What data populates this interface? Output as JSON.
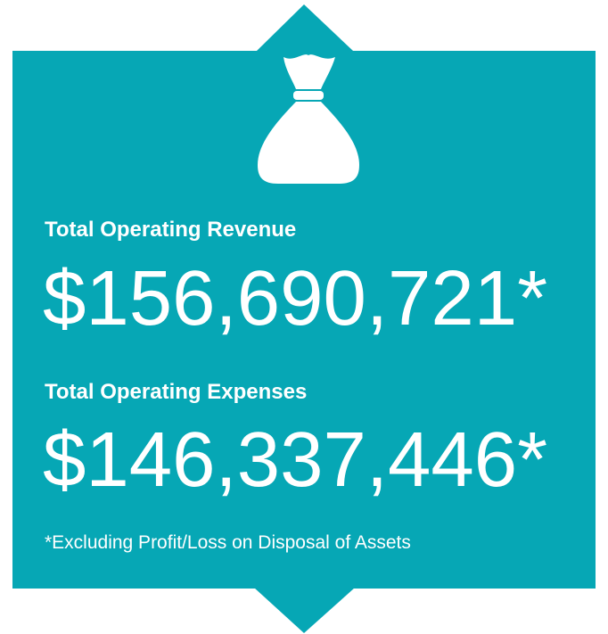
{
  "revenue": {
    "label": "Total Operating Revenue",
    "amount": "$156,690,721*"
  },
  "expenses": {
    "label": "Total Operating Expenses",
    "amount": "$146,337,446*"
  },
  "footnote": "*Excluding Profit/Loss on Disposal of Assets"
}
